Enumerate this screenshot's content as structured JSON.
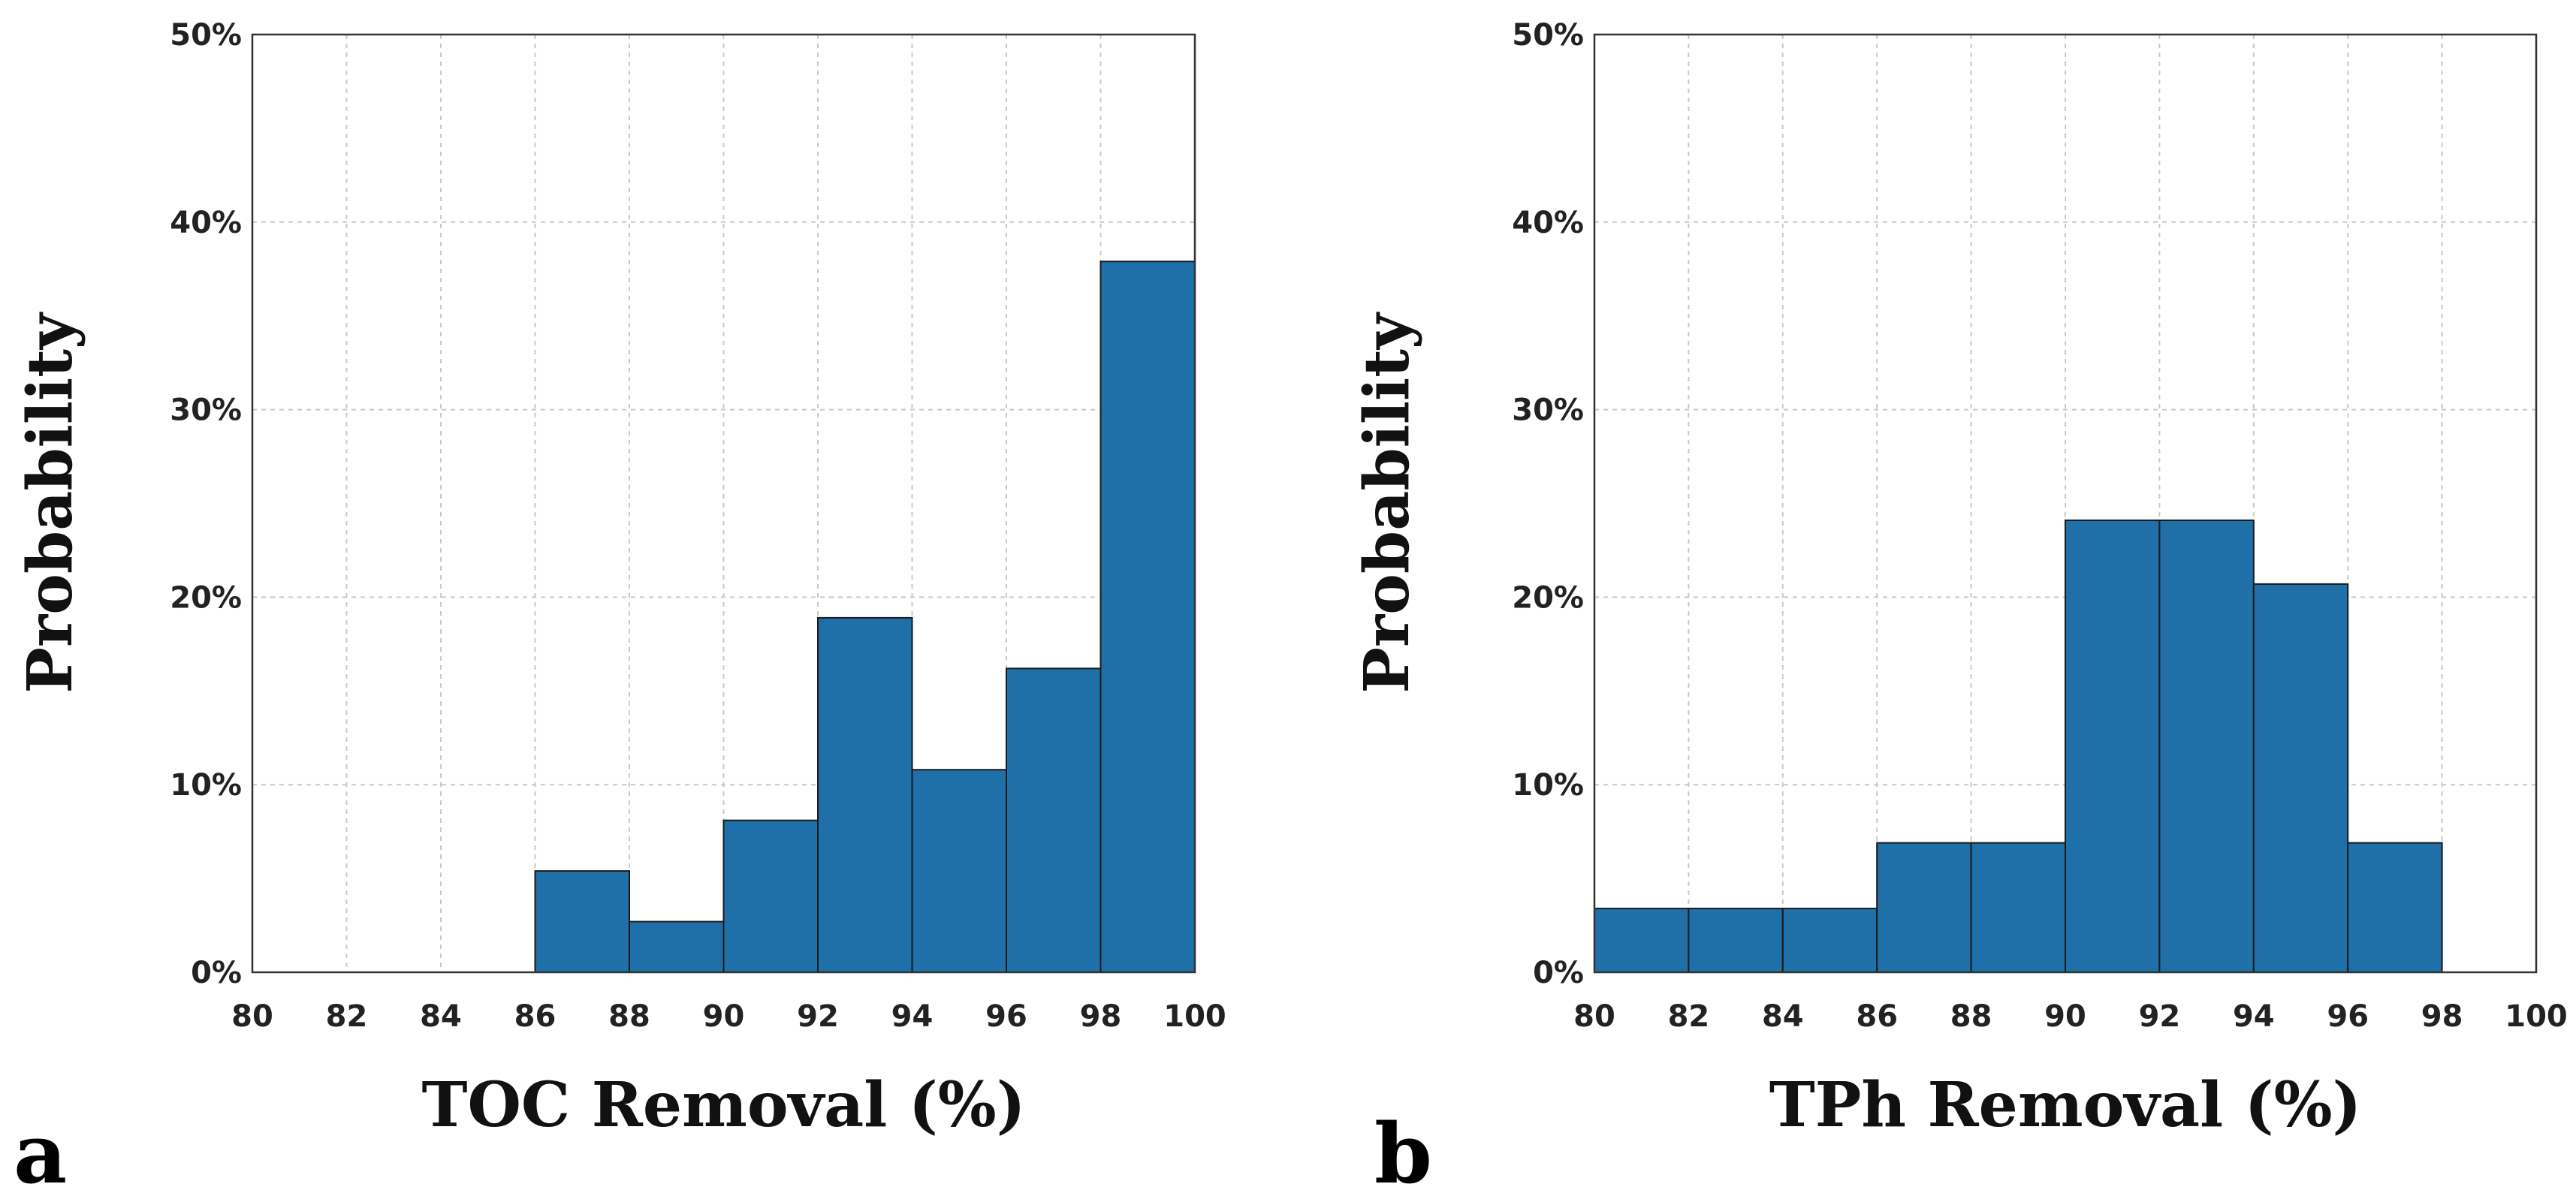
{
  "colors": {
    "bar": "#1f6fa8",
    "edge": "#1a1a1a",
    "grid": "#c9c9c9"
  },
  "chart_data": [
    {
      "type": "bar",
      "panel_label": "a",
      "xlabel": "TOC Removal (%)",
      "ylabel": "Probability",
      "xlim": [
        80,
        100
      ],
      "ylim": [
        0,
        50
      ],
      "xticks": [
        "80",
        "82",
        "84",
        "86",
        "88",
        "90",
        "92",
        "94",
        "96",
        "98",
        "100"
      ],
      "yticks": [
        "0%",
        "10%",
        "20%",
        "30%",
        "40%",
        "50%"
      ],
      "bins": [
        {
          "start": 86,
          "end": 88,
          "value": 5.4
        },
        {
          "start": 88,
          "end": 90,
          "value": 2.7
        },
        {
          "start": 90,
          "end": 92,
          "value": 8.1
        },
        {
          "start": 92,
          "end": 94,
          "value": 18.9
        },
        {
          "start": 94,
          "end": 96,
          "value": 10.8
        },
        {
          "start": 96,
          "end": 98,
          "value": 16.2
        },
        {
          "start": 98,
          "end": 100,
          "value": 37.9
        }
      ],
      "grid": true
    },
    {
      "type": "bar",
      "panel_label": "b",
      "xlabel": "TPh Removal (%)",
      "ylabel": "Probability",
      "xlim": [
        80,
        100
      ],
      "ylim": [
        0,
        50
      ],
      "xticks": [
        "80",
        "82",
        "84",
        "86",
        "88",
        "90",
        "92",
        "94",
        "96",
        "98",
        "100"
      ],
      "yticks": [
        "0%",
        "10%",
        "20%",
        "30%",
        "40%",
        "50%"
      ],
      "bins": [
        {
          "start": 80,
          "end": 82,
          "value": 3.4
        },
        {
          "start": 82,
          "end": 84,
          "value": 3.4
        },
        {
          "start": 84,
          "end": 86,
          "value": 3.4
        },
        {
          "start": 86,
          "end": 88,
          "value": 6.9
        },
        {
          "start": 88,
          "end": 90,
          "value": 6.9
        },
        {
          "start": 90,
          "end": 92,
          "value": 24.1
        },
        {
          "start": 92,
          "end": 94,
          "value": 24.1
        },
        {
          "start": 94,
          "end": 96,
          "value": 20.7
        },
        {
          "start": 96,
          "end": 98,
          "value": 6.9
        }
      ],
      "grid": true
    }
  ]
}
